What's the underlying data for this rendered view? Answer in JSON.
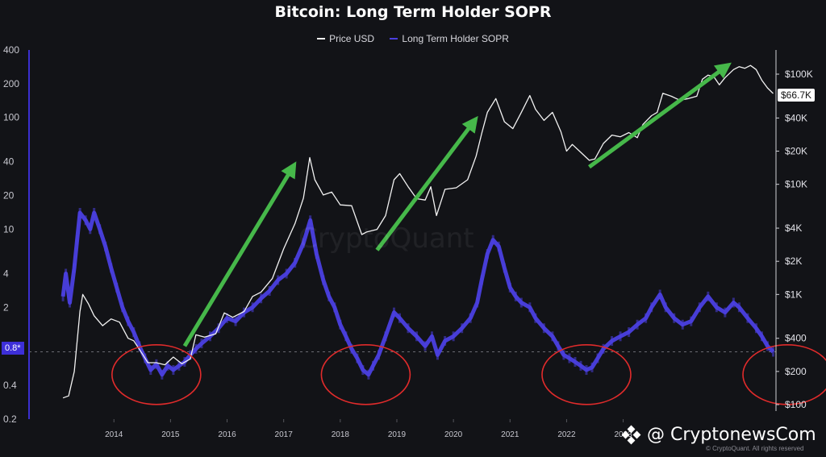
{
  "header": {
    "title": "Bitcoin: Long Term Holder SOPR"
  },
  "legend": {
    "price_label": "Price USD",
    "sopr_label": "Long Term Holder SOPR"
  },
  "tags": {
    "price_current": "$66.7K",
    "sopr_current": "0.8*"
  },
  "watermark": "CryptoQuant",
  "footer": {
    "brand": "@ CryptonewsCom",
    "copyright": "© CryptoQuant. All rights reserved"
  },
  "colors": {
    "background": "#121317",
    "price_line": "#f2f2f2",
    "sopr": "#4b3fe0",
    "arrow": "#46b84a",
    "circle": "#e02b2b",
    "grid": "#2a2b31"
  },
  "chart_data": {
    "type": "line",
    "title": "Bitcoin: Long Term Holder SOPR",
    "x_ticks": [
      "2014",
      "2015",
      "2016",
      "2017",
      "2018",
      "2019",
      "2020",
      "2021",
      "2022",
      "2023"
    ],
    "y_left": {
      "scale": "log",
      "ticks": [
        "400",
        "200",
        "100",
        "40",
        "20",
        "10",
        "4",
        "2",
        "0.4",
        "0.2"
      ],
      "tick_values": [
        400,
        200,
        100,
        40,
        20,
        10,
        4,
        2,
        0.4,
        0.2
      ],
      "range": [
        0.2,
        400
      ]
    },
    "y_right": {
      "scale": "log",
      "ticks": [
        "$100K",
        "$40K",
        "$20K",
        "$10K",
        "$4K",
        "$2K",
        "$1K",
        "$400",
        "$200",
        "$100"
      ],
      "tick_values": [
        100000,
        40000,
        20000,
        10000,
        4000,
        2000,
        1000,
        400,
        200,
        100
      ],
      "range": [
        100,
        100000
      ]
    },
    "reference_line": 0.8,
    "series": [
      {
        "name": "Price USD",
        "axis": "right",
        "points": [
          [
            2013.6,
            115
          ],
          [
            2013.7,
            120
          ],
          [
            2013.8,
            200
          ],
          [
            2013.9,
            700
          ],
          [
            2013.95,
            1000
          ],
          [
            2014.05,
            820
          ],
          [
            2014.15,
            640
          ],
          [
            2014.3,
            520
          ],
          [
            2014.45,
            600
          ],
          [
            2014.6,
            560
          ],
          [
            2014.75,
            400
          ],
          [
            2014.85,
            380
          ],
          [
            2015.0,
            290
          ],
          [
            2015.1,
            240
          ],
          [
            2015.25,
            240
          ],
          [
            2015.4,
            230
          ],
          [
            2015.55,
            270
          ],
          [
            2015.7,
            235
          ],
          [
            2015.85,
            260
          ],
          [
            2015.95,
            430
          ],
          [
            2016.1,
            410
          ],
          [
            2016.3,
            440
          ],
          [
            2016.45,
            680
          ],
          [
            2016.6,
            620
          ],
          [
            2016.8,
            700
          ],
          [
            2016.95,
            960
          ],
          [
            2017.1,
            1050
          ],
          [
            2017.3,
            1400
          ],
          [
            2017.5,
            2600
          ],
          [
            2017.7,
            4400
          ],
          [
            2017.85,
            7500
          ],
          [
            2017.96,
            17500
          ],
          [
            2018.05,
            11000
          ],
          [
            2018.2,
            8000
          ],
          [
            2018.35,
            8500
          ],
          [
            2018.5,
            6500
          ],
          [
            2018.7,
            6400
          ],
          [
            2018.88,
            3500
          ],
          [
            2018.97,
            3700
          ],
          [
            2019.15,
            3900
          ],
          [
            2019.3,
            5200
          ],
          [
            2019.45,
            11000
          ],
          [
            2019.55,
            12500
          ],
          [
            2019.7,
            9500
          ],
          [
            2019.85,
            7400
          ],
          [
            2020.0,
            7200
          ],
          [
            2020.1,
            9500
          ],
          [
            2020.2,
            5200
          ],
          [
            2020.35,
            9000
          ],
          [
            2020.55,
            9300
          ],
          [
            2020.75,
            11000
          ],
          [
            2020.9,
            18000
          ],
          [
            2021.0,
            29000
          ],
          [
            2021.1,
            45000
          ],
          [
            2021.25,
            60000
          ],
          [
            2021.4,
            37000
          ],
          [
            2021.55,
            32000
          ],
          [
            2021.7,
            45000
          ],
          [
            2021.85,
            64000
          ],
          [
            2021.95,
            48000
          ],
          [
            2022.1,
            38000
          ],
          [
            2022.25,
            45000
          ],
          [
            2022.4,
            30000
          ],
          [
            2022.5,
            20000
          ],
          [
            2022.6,
            23000
          ],
          [
            2022.75,
            19500
          ],
          [
            2022.9,
            16500
          ],
          [
            2023.0,
            17000
          ],
          [
            2023.15,
            23500
          ],
          [
            2023.3,
            28000
          ],
          [
            2023.45,
            27000
          ],
          [
            2023.6,
            29500
          ],
          [
            2023.75,
            26500
          ],
          [
            2023.85,
            35000
          ],
          [
            2024.0,
            42000
          ],
          [
            2024.1,
            45000
          ],
          [
            2024.2,
            67000
          ],
          [
            2024.35,
            63000
          ],
          [
            2024.5,
            58000
          ],
          [
            2024.65,
            60000
          ],
          [
            2024.8,
            63000
          ],
          [
            2024.9,
            90000
          ],
          [
            2025.0,
            98000
          ],
          [
            2025.1,
            95000
          ],
          [
            2025.2,
            80000
          ],
          [
            2025.3,
            93000
          ],
          [
            2025.45,
            110000
          ],
          [
            2025.55,
            117000
          ],
          [
            2025.65,
            113000
          ],
          [
            2025.75,
            120000
          ],
          [
            2025.85,
            110000
          ],
          [
            2025.95,
            88000
          ],
          [
            2026.05,
            75000
          ],
          [
            2026.15,
            66700
          ]
        ]
      },
      {
        "name": "Long Term Holder SOPR",
        "axis": "left",
        "points": [
          [
            2013.6,
            2.5
          ],
          [
            2013.65,
            4.0
          ],
          [
            2013.72,
            2.2
          ],
          [
            2013.8,
            4.5
          ],
          [
            2013.85,
            8.0
          ],
          [
            2013.9,
            14.0
          ],
          [
            2014.0,
            12.0
          ],
          [
            2014.08,
            10.0
          ],
          [
            2014.15,
            14.0
          ],
          [
            2014.25,
            10.0
          ],
          [
            2014.35,
            7.0
          ],
          [
            2014.45,
            4.5
          ],
          [
            2014.55,
            3.0
          ],
          [
            2014.65,
            2.0
          ],
          [
            2014.75,
            1.5
          ],
          [
            2014.85,
            1.2
          ],
          [
            2014.95,
            0.9
          ],
          [
            2015.05,
            0.7
          ],
          [
            2015.15,
            0.55
          ],
          [
            2015.25,
            0.62
          ],
          [
            2015.35,
            0.5
          ],
          [
            2015.45,
            0.6
          ],
          [
            2015.55,
            0.55
          ],
          [
            2015.65,
            0.6
          ],
          [
            2015.75,
            0.65
          ],
          [
            2015.85,
            0.75
          ],
          [
            2015.95,
            0.85
          ],
          [
            2016.05,
            0.95
          ],
          [
            2016.2,
            1.1
          ],
          [
            2016.35,
            1.3
          ],
          [
            2016.5,
            1.6
          ],
          [
            2016.65,
            1.5
          ],
          [
            2016.8,
            1.8
          ],
          [
            2016.95,
            2.0
          ],
          [
            2017.1,
            2.4
          ],
          [
            2017.25,
            2.8
          ],
          [
            2017.4,
            3.5
          ],
          [
            2017.55,
            4.0
          ],
          [
            2017.7,
            5.0
          ],
          [
            2017.85,
            7.5
          ],
          [
            2017.97,
            12.0
          ],
          [
            2018.08,
            6.0
          ],
          [
            2018.2,
            3.5
          ],
          [
            2018.3,
            2.5
          ],
          [
            2018.4,
            2.0
          ],
          [
            2018.5,
            1.4
          ],
          [
            2018.6,
            1.1
          ],
          [
            2018.7,
            0.85
          ],
          [
            2018.8,
            0.7
          ],
          [
            2018.9,
            0.55
          ],
          [
            2019.0,
            0.5
          ],
          [
            2019.08,
            0.6
          ],
          [
            2019.18,
            0.75
          ],
          [
            2019.3,
            1.1
          ],
          [
            2019.45,
            1.8
          ],
          [
            2019.55,
            1.6
          ],
          [
            2019.7,
            1.3
          ],
          [
            2019.85,
            1.1
          ],
          [
            2020.0,
            0.9
          ],
          [
            2020.12,
            1.1
          ],
          [
            2020.22,
            0.75
          ],
          [
            2020.35,
            1.0
          ],
          [
            2020.5,
            1.1
          ],
          [
            2020.65,
            1.3
          ],
          [
            2020.8,
            1.6
          ],
          [
            2020.92,
            2.2
          ],
          [
            2021.0,
            3.5
          ],
          [
            2021.1,
            6.0
          ],
          [
            2021.2,
            8.0
          ],
          [
            2021.3,
            7.0
          ],
          [
            2021.4,
            4.5
          ],
          [
            2021.5,
            3.0
          ],
          [
            2021.6,
            2.5
          ],
          [
            2021.7,
            2.2
          ],
          [
            2021.85,
            2.0
          ],
          [
            2021.95,
            1.6
          ],
          [
            2022.1,
            1.3
          ],
          [
            2022.25,
            1.1
          ],
          [
            2022.35,
            0.9
          ],
          [
            2022.45,
            0.75
          ],
          [
            2022.55,
            0.7
          ],
          [
            2022.65,
            0.65
          ],
          [
            2022.75,
            0.6
          ],
          [
            2022.85,
            0.55
          ],
          [
            2022.95,
            0.58
          ],
          [
            2023.05,
            0.7
          ],
          [
            2023.15,
            0.85
          ],
          [
            2023.3,
            1.0
          ],
          [
            2023.45,
            1.1
          ],
          [
            2023.6,
            1.2
          ],
          [
            2023.75,
            1.4
          ],
          [
            2023.9,
            1.6
          ],
          [
            2024.0,
            2.0
          ],
          [
            2024.15,
            2.6
          ],
          [
            2024.25,
            2.0
          ],
          [
            2024.4,
            1.6
          ],
          [
            2024.55,
            1.4
          ],
          [
            2024.7,
            1.5
          ],
          [
            2024.85,
            2.0
          ],
          [
            2025.0,
            2.5
          ],
          [
            2025.15,
            2.0
          ],
          [
            2025.3,
            1.8
          ],
          [
            2025.45,
            2.2
          ],
          [
            2025.55,
            2.0
          ],
          [
            2025.7,
            1.6
          ],
          [
            2025.85,
            1.3
          ],
          [
            2025.95,
            1.1
          ],
          [
            2026.05,
            0.9
          ],
          [
            2026.15,
            0.8
          ]
        ]
      }
    ],
    "annotations": {
      "arrows": [
        {
          "from": [
            2015.75,
            0.9
          ],
          "to": [
            2017.65,
            35
          ]
        },
        {
          "from": [
            2019.15,
            6.5
          ],
          "to": [
            2020.85,
            90
          ]
        },
        {
          "from": [
            2022.9,
            36
          ],
          "to": [
            2025.3,
            280
          ]
        }
      ],
      "circles": [
        {
          "center": [
            2015.25,
            0.5
          ]
        },
        {
          "center": [
            2018.95,
            0.5
          ]
        },
        {
          "center": [
            2022.85,
            0.5
          ]
        },
        {
          "center": [
            2026.4,
            0.5
          ]
        }
      ]
    }
  }
}
